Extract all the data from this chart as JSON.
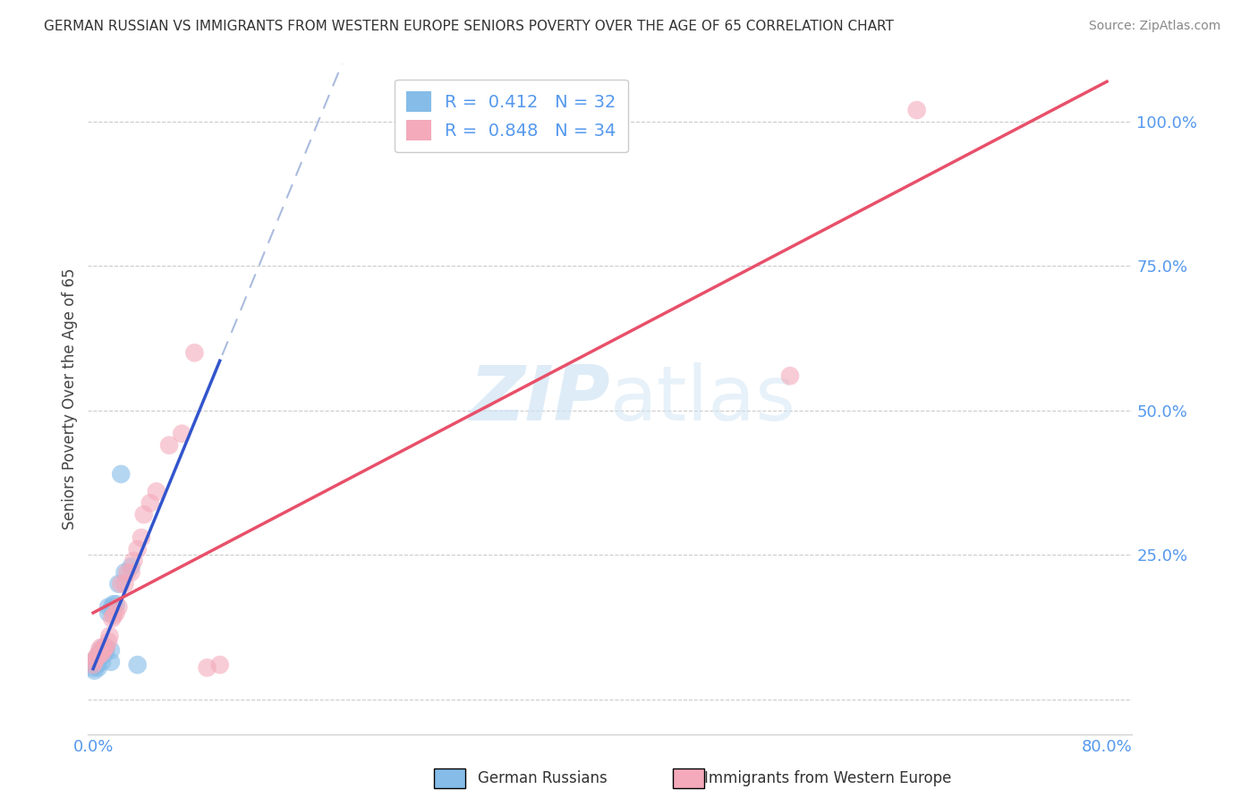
{
  "title": "GERMAN RUSSIAN VS IMMIGRANTS FROM WESTERN EUROPE SENIORS POVERTY OVER THE AGE OF 65 CORRELATION CHART",
  "source": "Source: ZipAtlas.com",
  "ylabel": "Seniors Poverty Over the Age of 65",
  "R1": 0.412,
  "N1": 32,
  "R2": 0.848,
  "N2": 34,
  "color_blue": "#85bce8",
  "color_pink": "#f4aabb",
  "trendline_blue": "#3355cc",
  "trendline_pink": "#e8506a",
  "ref_line_color": "#aabbdd",
  "watermark_color": "#d0e4f5",
  "background_color": "#ffffff",
  "grid_color": "#cccccc",
  "axis_label_color": "#5599ee",
  "title_color": "#333333",
  "legend_label_1": "German Russians",
  "legend_label_2": "Immigrants from Western Europe",
  "xlim": [
    -0.004,
    0.82
  ],
  "ylim": [
    -0.06,
    1.1
  ],
  "blue_scatter_x": [
    0.0,
    0.001,
    0.001,
    0.002,
    0.002,
    0.003,
    0.003,
    0.004,
    0.004,
    0.005,
    0.005,
    0.006,
    0.006,
    0.007,
    0.007,
    0.008,
    0.008,
    0.009,
    0.01,
    0.01,
    0.012,
    0.012,
    0.014,
    0.015,
    0.016,
    0.018,
    0.02,
    0.025,
    0.03,
    0.035,
    0.014,
    0.022
  ],
  "blue_scatter_y": [
    0.055,
    0.06,
    0.05,
    0.065,
    0.07,
    0.06,
    0.065,
    0.075,
    0.055,
    0.075,
    0.08,
    0.075,
    0.08,
    0.065,
    0.075,
    0.08,
    0.09,
    0.08,
    0.085,
    0.09,
    0.15,
    0.16,
    0.065,
    0.16,
    0.165,
    0.165,
    0.2,
    0.22,
    0.23,
    0.06,
    0.085,
    0.39
  ],
  "pink_scatter_x": [
    0.0,
    0.001,
    0.002,
    0.003,
    0.004,
    0.005,
    0.006,
    0.007,
    0.008,
    0.009,
    0.01,
    0.012,
    0.013,
    0.015,
    0.016,
    0.018,
    0.02,
    0.022,
    0.025,
    0.027,
    0.03,
    0.032,
    0.035,
    0.038,
    0.04,
    0.045,
    0.05,
    0.06,
    0.07,
    0.08,
    0.09,
    0.1,
    0.55,
    0.65
  ],
  "pink_scatter_y": [
    0.06,
    0.065,
    0.07,
    0.075,
    0.075,
    0.085,
    0.09,
    0.08,
    0.085,
    0.09,
    0.09,
    0.1,
    0.11,
    0.14,
    0.145,
    0.15,
    0.16,
    0.2,
    0.2,
    0.22,
    0.22,
    0.24,
    0.26,
    0.28,
    0.32,
    0.34,
    0.36,
    0.44,
    0.46,
    0.6,
    0.055,
    0.06,
    0.56,
    1.02
  ]
}
